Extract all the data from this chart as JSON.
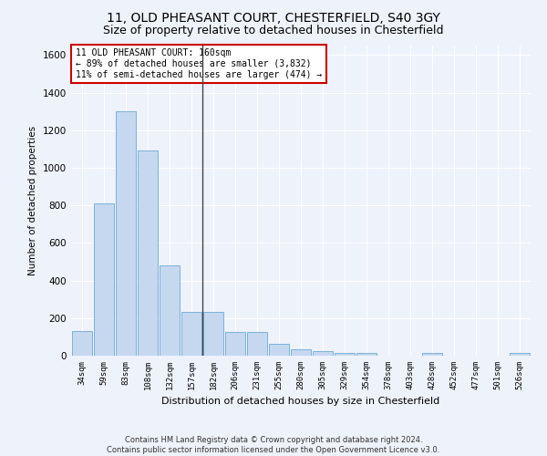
{
  "title1": "11, OLD PHEASANT COURT, CHESTERFIELD, S40 3GY",
  "title2": "Size of property relative to detached houses in Chesterfield",
  "xlabel": "Distribution of detached houses by size in Chesterfield",
  "ylabel": "Number of detached properties",
  "footnote1": "Contains HM Land Registry data © Crown copyright and database right 2024.",
  "footnote2": "Contains public sector information licensed under the Open Government Licence v3.0.",
  "annotation_line1": "11 OLD PHEASANT COURT: 160sqm",
  "annotation_line2": "← 89% of detached houses are smaller (3,832)",
  "annotation_line3": "11% of semi-detached houses are larger (474) →",
  "categories": [
    "34sqm",
    "59sqm",
    "83sqm",
    "108sqm",
    "132sqm",
    "157sqm",
    "182sqm",
    "206sqm",
    "231sqm",
    "255sqm",
    "280sqm",
    "305sqm",
    "329sqm",
    "354sqm",
    "378sqm",
    "403sqm",
    "428sqm",
    "452sqm",
    "477sqm",
    "501sqm",
    "526sqm"
  ],
  "values": [
    130,
    810,
    1300,
    1090,
    480,
    235,
    235,
    125,
    125,
    65,
    35,
    25,
    15,
    15,
    0,
    0,
    15,
    0,
    0,
    0,
    15
  ],
  "bar_color": "#c5d8f0",
  "bar_edge_color": "#6aaad4",
  "vline_x_idx": 5,
  "vline_color": "#444444",
  "ylim": [
    0,
    1650
  ],
  "yticks": [
    0,
    200,
    400,
    600,
    800,
    1000,
    1200,
    1400,
    1600
  ],
  "annotation_box_color": "#ffffff",
  "annotation_box_edge": "#cc0000",
  "bg_color": "#eef2fb",
  "grid_color": "#ffffff",
  "title1_fontsize": 10,
  "title2_fontsize": 9
}
